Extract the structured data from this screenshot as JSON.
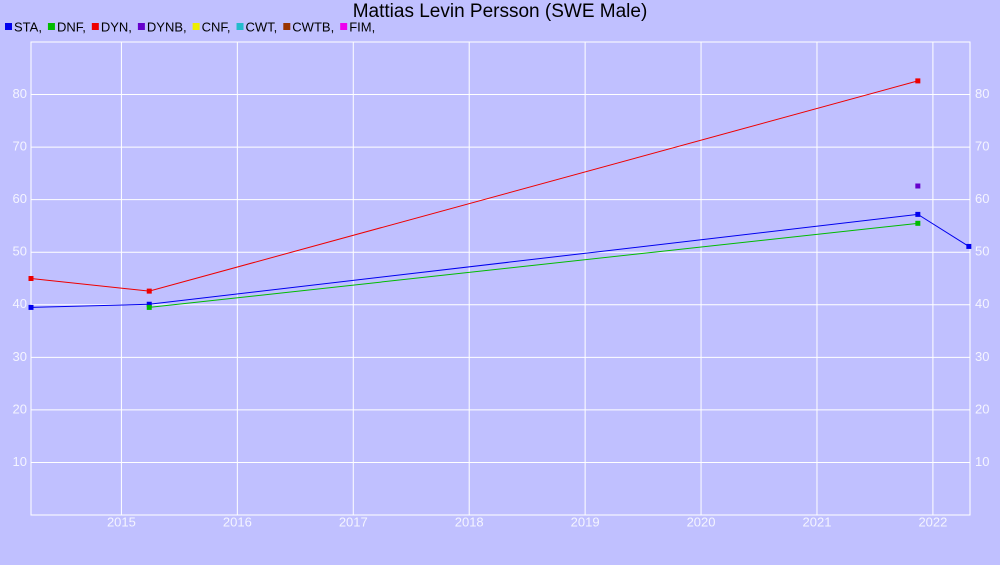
{
  "chart_data": {
    "type": "line",
    "title": "Mattias Levin Persson (SWE Male)",
    "xlim": [
      2014.22,
      2022.32
    ],
    "xticks": [
      2015,
      2016,
      2017,
      2018,
      2019,
      2020,
      2021,
      2022
    ],
    "ylim": [
      0,
      90
    ],
    "yticks": [
      10,
      20,
      30,
      40,
      50,
      60,
      70,
      80
    ],
    "grid": true,
    "series": [
      {
        "name": "STA,",
        "color": "#0000ee",
        "x": [
          2014.22,
          2015.24,
          2021.87,
          2022.31
        ],
        "values": [
          39.5,
          40.1,
          57.2,
          51.1
        ]
      },
      {
        "name": "DNF,",
        "color": "#00bb00",
        "x": [
          2015.24,
          2021.87
        ],
        "values": [
          39.5,
          55.5
        ]
      },
      {
        "name": "DYN,",
        "color": "#ee0000",
        "x": [
          2014.22,
          2015.24,
          2021.87
        ],
        "values": [
          45.0,
          42.6,
          82.6
        ]
      },
      {
        "name": "DYNB,",
        "color": "#6600cc",
        "x": [
          2021.87
        ],
        "values": [
          62.6
        ]
      },
      {
        "name": "CNF,",
        "color": "#eeee00",
        "x": [],
        "values": []
      },
      {
        "name": "CWT,",
        "color": "#22bbcc",
        "x": [],
        "values": []
      },
      {
        "name": "CWTB,",
        "color": "#993300",
        "x": [],
        "values": []
      },
      {
        "name": "FIM,",
        "color": "#ee00ee",
        "x": [],
        "values": []
      }
    ]
  }
}
